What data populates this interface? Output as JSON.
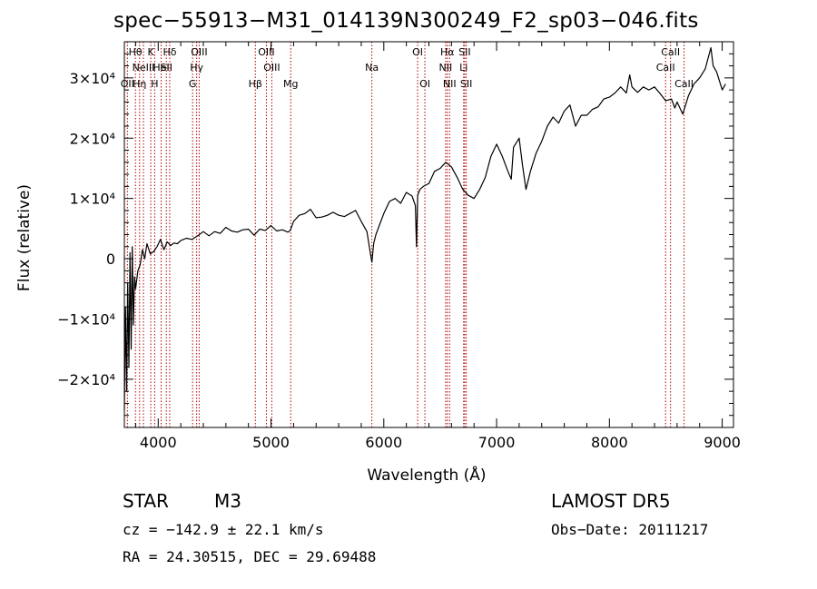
{
  "title": "spec−55913−M31_014139N300249_F2_sp03−046.fits",
  "info": {
    "class": "STAR",
    "subclass": "M3",
    "survey": "LAMOST  DR5",
    "cz": "cz = −142.9 ± 22.1 km/s",
    "obs_date": "Obs−Date: 20111217",
    "radec": "RA =  24.30515, DEC =  29.69488"
  },
  "chart_data": {
    "type": "line",
    "title": "spec−55913−M31_014139N300249_F2_sp03−046.fits",
    "xlabel": "Wavelength (Å)",
    "ylabel": "Flux (relative)",
    "xlim": [
      3700,
      9100
    ],
    "ylim": [
      -28000,
      36000
    ],
    "x_ticks": [
      {
        "value": 4000,
        "label": "4000"
      },
      {
        "value": 5000,
        "label": "5000"
      },
      {
        "value": 6000,
        "label": "6000"
      },
      {
        "value": 7000,
        "label": "7000"
      },
      {
        "value": 8000,
        "label": "8000"
      },
      {
        "value": 9000,
        "label": "9000"
      }
    ],
    "y_ticks": [
      {
        "value": -20000,
        "label": "−2×10⁴"
      },
      {
        "value": -10000,
        "label": "−1×10⁴"
      },
      {
        "value": 0,
        "label": "0"
      },
      {
        "value": 10000,
        "label": "1×10⁴"
      },
      {
        "value": 20000,
        "label": "2×10⁴"
      },
      {
        "value": 30000,
        "label": "3×10⁴"
      }
    ],
    "series": [
      {
        "x": [
          3700,
          3710,
          3720,
          3730,
          3740,
          3750,
          3760,
          3770,
          3780,
          3790,
          3800,
          3820,
          3840,
          3860,
          3880,
          3900,
          3930,
          3960,
          3990,
          4020,
          4050,
          4080,
          4110,
          4140,
          4170,
          4200,
          4250,
          4300,
          4350,
          4400,
          4450,
          4500,
          4550,
          4600,
          4650,
          4700,
          4750,
          4800,
          4850,
          4900,
          4950,
          5000,
          5050,
          5100,
          5150,
          5170,
          5200,
          5250,
          5300,
          5350,
          5400,
          5450,
          5500,
          5550,
          5600,
          5650,
          5700,
          5750,
          5800,
          5850,
          5880,
          5895,
          5910,
          5930,
          5960,
          6000,
          6050,
          6100,
          6150,
          6200,
          6250,
          6280,
          6290,
          6300,
          6320,
          6350,
          6400,
          6450,
          6500,
          6550,
          6600,
          6650,
          6700,
          6750,
          6800,
          6850,
          6900,
          6950,
          7000,
          7050,
          7100,
          7130,
          7150,
          7200,
          7230,
          7260,
          7300,
          7350,
          7400,
          7450,
          7500,
          7550,
          7600,
          7650,
          7700,
          7750,
          7800,
          7850,
          7900,
          7950,
          8000,
          8050,
          8100,
          8150,
          8180,
          8200,
          8250,
          8300,
          8350,
          8400,
          8450,
          8500,
          8550,
          8580,
          8600,
          8650,
          8700,
          8750,
          8800,
          8850,
          8900,
          8920,
          8950,
          9000,
          9030
        ],
        "y": [
          -25000,
          -8000,
          -22000,
          -4000,
          -18000,
          1000,
          -15000,
          2000,
          -11000,
          -3000,
          -5000,
          -2000,
          -1000,
          1500,
          0,
          2500,
          800,
          1200,
          2000,
          3200,
          1500,
          2800,
          2200,
          2600,
          2500,
          3000,
          3400,
          3200,
          3800,
          4500,
          3800,
          4500,
          4200,
          5200,
          4600,
          4400,
          4800,
          4900,
          3900,
          4900,
          4700,
          5500,
          4600,
          4800,
          4400,
          4700,
          6200,
          7200,
          7500,
          8200,
          6800,
          6900,
          7200,
          7700,
          7200,
          7000,
          7500,
          8000,
          6200,
          4500,
          1000,
          -600,
          2500,
          4000,
          5500,
          7500,
          9500,
          10000,
          9200,
          11000,
          10400,
          8800,
          2000,
          10500,
          11500,
          12000,
          12500,
          14500,
          15000,
          16000,
          15200,
          13500,
          11500,
          10500,
          10000,
          11500,
          13500,
          17000,
          19000,
          17000,
          14500,
          13200,
          18500,
          20000,
          15500,
          11500,
          14500,
          17500,
          19500,
          22000,
          23500,
          22500,
          24500,
          25500,
          22000,
          23800,
          23800,
          24800,
          25200,
          26500,
          26800,
          27500,
          28500,
          27500,
          30500,
          28500,
          27600,
          28500,
          28000,
          28500,
          27400,
          26200,
          26500,
          25000,
          26000,
          24000,
          27000,
          29000,
          30000,
          31500,
          35000,
          32000,
          31000,
          28000,
          29000
        ]
      }
    ],
    "lines": [
      {
        "x": 3727,
        "label": "OII",
        "row": 3
      },
      {
        "x": 3798,
        "label": "Hθ",
        "row": 1
      },
      {
        "x": 3835,
        "label": "Hη",
        "row": 3
      },
      {
        "x": 3869,
        "label": "NeIII",
        "row": 2
      },
      {
        "x": 3934,
        "label": "K",
        "row": 1
      },
      {
        "x": 3969,
        "label": "H",
        "row": 3
      },
      {
        "x": 4026,
        "label": "HeI",
        "row": 2
      },
      {
        "x": 4072,
        "label": "SII",
        "row": 2
      },
      {
        "x": 4102,
        "label": "Hδ",
        "row": 1
      },
      {
        "x": 4305,
        "label": "G",
        "row": 3
      },
      {
        "x": 4341,
        "label": "Hγ",
        "row": 2
      },
      {
        "x": 4363,
        "label": "OIII",
        "row": 1
      },
      {
        "x": 4861,
        "label": "Hβ",
        "row": 3
      },
      {
        "x": 4959,
        "label": "OIII",
        "row": 1
      },
      {
        "x": 5007,
        "label": "OIII",
        "row": 2
      },
      {
        "x": 5175,
        "label": "Mg",
        "row": 3
      },
      {
        "x": 5894,
        "label": "Na",
        "row": 2
      },
      {
        "x": 6300,
        "label": "OI",
        "row": 1
      },
      {
        "x": 6364,
        "label": "OI",
        "row": 3
      },
      {
        "x": 6548,
        "label": "NII",
        "row": 2
      },
      {
        "x": 6563,
        "label": "Hα",
        "row": 1
      },
      {
        "x": 6583,
        "label": "NII",
        "row": 3
      },
      {
        "x": 6708,
        "label": "Li",
        "row": 2
      },
      {
        "x": 6717,
        "label": "SII",
        "row": 1
      },
      {
        "x": 6731,
        "label": "SII",
        "row": 3
      },
      {
        "x": 8498,
        "label": "CaII",
        "row": 2
      },
      {
        "x": 8542,
        "label": "CaII",
        "row": 1
      },
      {
        "x": 8662,
        "label": "CaII",
        "row": 3
      }
    ],
    "colors": {
      "spectrum": "#000000",
      "lines": "#b00000",
      "axes": "#000000"
    }
  }
}
